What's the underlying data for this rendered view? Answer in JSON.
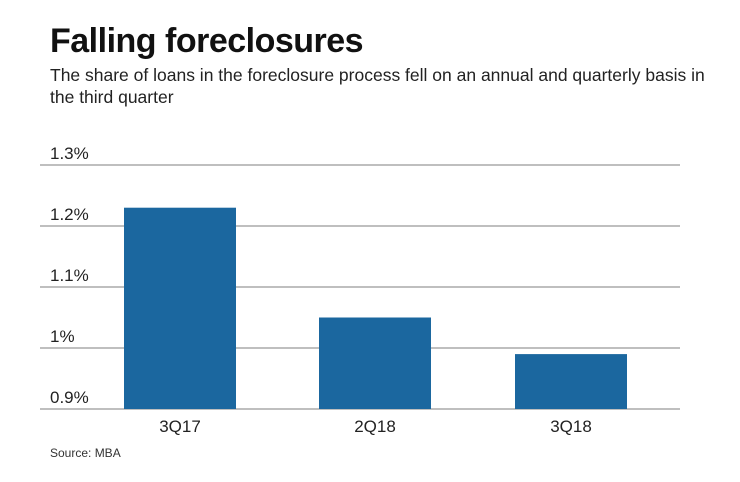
{
  "chart_data": {
    "type": "bar",
    "title": "Falling foreclosures",
    "subtitle": "The share of loans in the foreclosure process fell on an annual and quarterly basis in the third quarter",
    "categories": [
      "3Q17",
      "2Q18",
      "3Q18"
    ],
    "values": [
      1.23,
      1.05,
      0.99
    ],
    "unit": "%",
    "ylim": [
      0.9,
      1.3
    ],
    "yticks": [
      0.9,
      1.0,
      1.1,
      1.2,
      1.3
    ],
    "ytick_labels": [
      "0.9%",
      "1%",
      "1.1%",
      "1.2%",
      "1.3%"
    ],
    "grid": true,
    "bar_color": "#1b679f",
    "source": "Source: MBA"
  }
}
